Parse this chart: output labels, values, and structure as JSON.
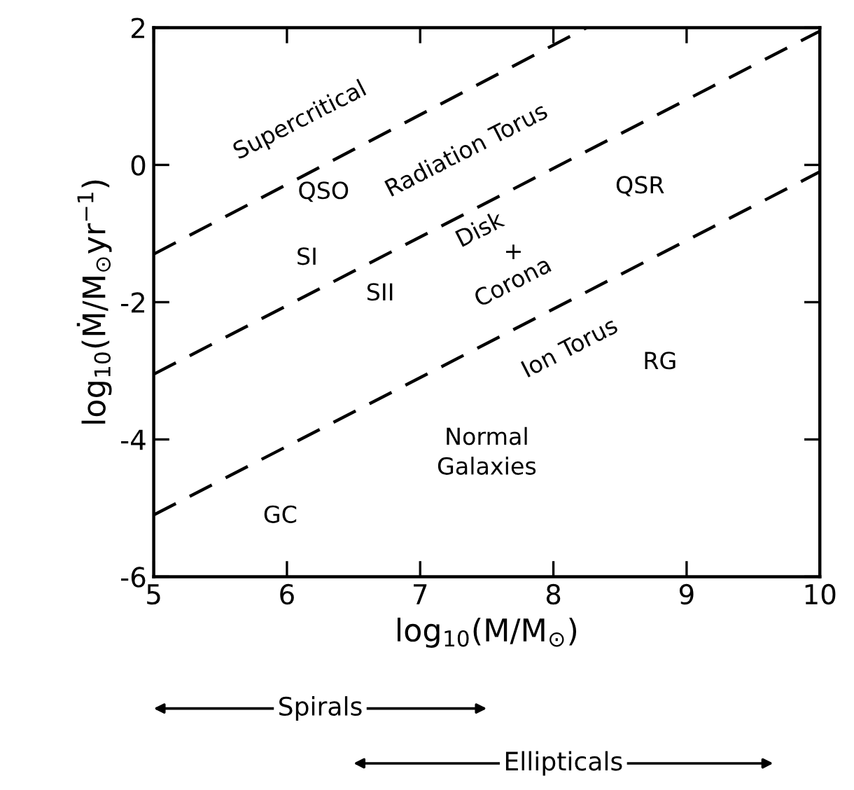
{
  "chart_data": {
    "type": "line",
    "xlabel": "log$_{10}$(M/M$_{⊙}$)",
    "ylabel": "log$_{10}$(Ṁ/M$_{⊙}$yr$^{−1}$)",
    "series": [
      {
        "x": [
          5,
          8.25
        ],
        "values": [
          -1.3,
          2
        ],
        "color": "#000000"
      },
      {
        "x": [
          5,
          10
        ],
        "values": [
          -3.05,
          1.95
        ],
        "color": "#000000"
      },
      {
        "x": [
          5,
          10
        ],
        "values": [
          -5.1,
          -0.1
        ],
        "color": "#000000"
      }
    ],
    "line_style": "dashed",
    "marker": "none",
    "xlim": [
      5,
      10
    ],
    "ylim": [
      -6,
      2
    ],
    "xticks": [
      5,
      6,
      7,
      8,
      9,
      10
    ],
    "yticks": [
      -6,
      -4,
      -2,
      0,
      2
    ],
    "grid": false,
    "legend": false,
    "annotations": [
      "Supercritical",
      "QSO",
      "Radiation Torus",
      "QSR",
      "SI",
      "SII",
      "Disk",
      "+",
      "Corona",
      "Ion Torus",
      "RG",
      "Normal\nGalaxies",
      "GC",
      "Spirals",
      "Ellipticals"
    ]
  }
}
